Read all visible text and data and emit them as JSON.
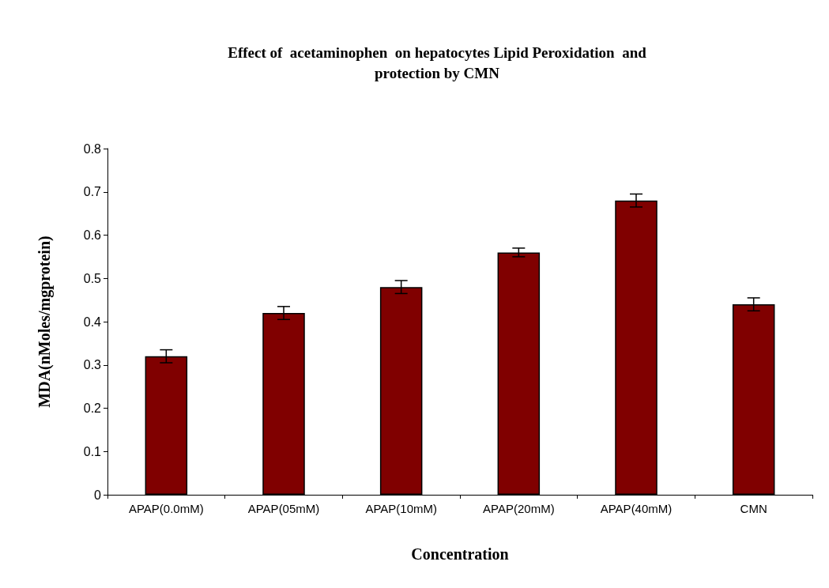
{
  "chart_data": {
    "type": "bar",
    "title": "Effect of  acetaminophen  on hepatocytes Lipid Peroxidation  and\nprotection by CMN",
    "xlabel": "Concentration",
    "ylabel": "MDA(nMoles/mgprotein)",
    "categories": [
      "APAP(0.0mM)",
      "APAP(05mM)",
      "APAP(10mM)",
      "APAP(20mM)",
      "APAP(40mM)",
      "CMN"
    ],
    "values": [
      0.32,
      0.42,
      0.48,
      0.56,
      0.68,
      0.44
    ],
    "errors": [
      0.015,
      0.015,
      0.015,
      0.01,
      0.015,
      0.015
    ],
    "color": "#800000",
    "ylim": [
      0,
      0.8
    ],
    "yticks": [
      0,
      0.1,
      0.2,
      0.3,
      0.4,
      0.5,
      0.6,
      0.7,
      0.8
    ],
    "grid": false
  }
}
